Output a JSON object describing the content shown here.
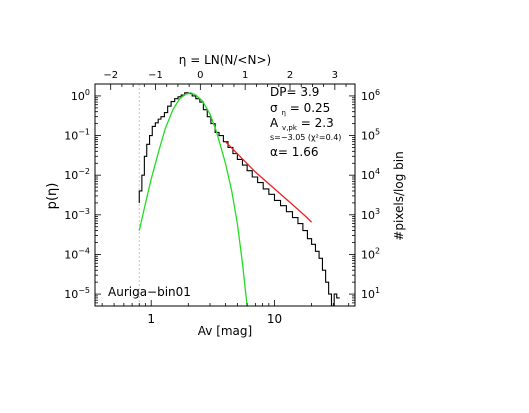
{
  "chart_data": {
    "type": "line",
    "title": "",
    "xlabel": "Av [mag]",
    "ylabel": "p(η)",
    "x2label": "η = LN(N/<N>)",
    "y2label": "#pixels/log bin",
    "xscale": "log",
    "yscale": "log",
    "xlim": [
      0.35,
      45
    ],
    "ylim": [
      5e-06,
      2
    ],
    "x_ticks": [
      {
        "value": 1,
        "label": "1"
      },
      {
        "value": 10,
        "label": "10"
      }
    ],
    "y_ticks": [
      {
        "value": 1,
        "mantissa": "10",
        "exp": "0"
      },
      {
        "value": 0.1,
        "mantissa": "10",
        "exp": "−1"
      },
      {
        "value": 0.01,
        "mantissa": "10",
        "exp": "−2"
      },
      {
        "value": 0.001,
        "mantissa": "10",
        "exp": "−3"
      },
      {
        "value": 0.0001,
        "mantissa": "10",
        "exp": "−4"
      },
      {
        "value": 1e-05,
        "mantissa": "10",
        "exp": "−5"
      }
    ],
    "x2_ticks": [
      {
        "value": -2,
        "label": "−2"
      },
      {
        "value": -1,
        "label": "−1"
      },
      {
        "value": 0,
        "label": "0"
      },
      {
        "value": 1,
        "label": "1"
      },
      {
        "value": 2,
        "label": "2"
      },
      {
        "value": 3,
        "label": "3"
      }
    ],
    "y2_ticks": [
      {
        "value": 1,
        "mantissa": "10",
        "exp": "6"
      },
      {
        "value": 0.1,
        "mantissa": "10",
        "exp": "5"
      },
      {
        "value": 0.01,
        "mantissa": "10",
        "exp": "4"
      },
      {
        "value": 0.001,
        "mantissa": "10",
        "exp": "3"
      },
      {
        "value": 0.0001,
        "mantissa": "10",
        "exp": "2"
      },
      {
        "value": 1e-05,
        "mantissa": "10",
        "exp": "1"
      }
    ],
    "annotations": {
      "dp": "DP= 3.9",
      "sigma": "σ",
      "sigma_sub": "η",
      "sigma_value": "= 0.25",
      "a": "A",
      "a_sub": "v,pk",
      "a_value": "= 2.3",
      "slope": "s=−3.05 (χ²=0.4)",
      "alpha": "α= 1.66",
      "region": "Auriga−bin01"
    },
    "threshold_av": 0.8,
    "colors": {
      "histogram": "#000000",
      "lognormal_fit": "#22dd22",
      "powerlaw_fit": "#ee2222",
      "threshold": "#c8c8c8"
    },
    "series": [
      {
        "id": "histogram",
        "style": "steps",
        "x": [
          0.8,
          0.84,
          0.88,
          0.92,
          0.97,
          1.02,
          1.08,
          1.14,
          1.2,
          1.28,
          1.36,
          1.45,
          1.55,
          1.65,
          1.75,
          1.87,
          2.0,
          2.15,
          2.3,
          2.48,
          2.65,
          2.85,
          3.05,
          3.3,
          3.55,
          3.85,
          4.2,
          4.6,
          5.0,
          5.5,
          6.0,
          6.6,
          7.3,
          8.1,
          9.0,
          10.0,
          11.2,
          12.5,
          14.0,
          15.5,
          17.0,
          18.5,
          20.0,
          21.5,
          23.0,
          24.5,
          26.0,
          27.5,
          29.0,
          30.5,
          32.0
        ],
        "y": [
          0.004,
          0.01,
          0.03,
          0.06,
          0.1,
          0.17,
          0.21,
          0.26,
          0.3,
          0.38,
          0.55,
          0.72,
          0.85,
          0.95,
          1.05,
          1.2,
          1.15,
          1.0,
          0.85,
          0.7,
          0.45,
          0.3,
          0.2,
          0.12,
          0.1,
          0.07,
          0.05,
          0.035,
          0.025,
          0.018,
          0.013,
          0.009,
          0.0065,
          0.0045,
          0.0033,
          0.0023,
          0.0017,
          0.0012,
          0.00085,
          0.0006,
          0.0004,
          0.00025,
          0.00018,
          0.00012,
          8e-05,
          4e-05,
          2e-05,
          1e-05,
          5e-06,
          1e-05,
          8e-06
        ]
      },
      {
        "id": "lognormal_fit",
        "style": "line",
        "x": [
          0.8,
          0.9,
          1.0,
          1.15,
          1.3,
          1.5,
          1.7,
          1.9,
          2.1,
          2.3,
          2.6,
          3.0,
          3.4,
          4.0,
          4.5,
          5.0,
          5.5,
          6.0
        ],
        "y": [
          0.0004,
          0.002,
          0.008,
          0.04,
          0.15,
          0.45,
          0.85,
          1.1,
          1.2,
          1.05,
          0.75,
          0.35,
          0.12,
          0.02,
          0.004,
          0.0006,
          6e-05,
          5e-06
        ]
      },
      {
        "id": "powerlaw_fit",
        "style": "line",
        "x": [
          4.0,
          7.0,
          11.0,
          15.0,
          18.0,
          20.0
        ],
        "y": [
          0.07,
          0.012,
          0.0035,
          0.0015,
          0.0009,
          0.00065
        ]
      }
    ]
  }
}
